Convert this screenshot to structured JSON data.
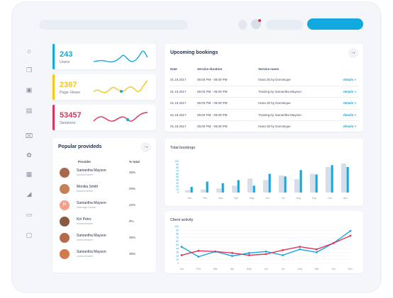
{
  "colors": {
    "blue": "#11a9e0",
    "yellow": "#f6c619",
    "red": "#e0325a",
    "lightbar": "#d7dde9",
    "purple": "#7d59c9"
  },
  "header": {
    "search_icon": "search-bar",
    "bell_icon": "bell-icon",
    "avatar_icon": "avatar-icon",
    "user_pill_icon": "user-pill",
    "primary_button_icon": "primary-action-button"
  },
  "sidebar": {
    "icons": [
      "bank-icon",
      "copy-icon",
      "image-icon",
      "files-icon",
      "trash-icon",
      "gift-icon",
      "grid-icon",
      "megaphone-icon",
      "monitor-icon",
      "chat-icon"
    ]
  },
  "stats": [
    {
      "value": "243",
      "label": "Users",
      "color": "#11a9e0"
    },
    {
      "value": "2367",
      "label": "Page Views",
      "color": "#f6c619"
    },
    {
      "value": "53457",
      "label": "Sessions",
      "color": "#e0325a"
    }
  ],
  "bookings": {
    "title": "Upcoming bookings",
    "headers": [
      "Date",
      "Service duration",
      "Service name"
    ],
    "rows": [
      {
        "date": "01.19.2017",
        "time": "05:00 PM - 06:00 PM",
        "service": "Hana 30 by Dominique",
        "action": "details >"
      },
      {
        "date": "01.19.2017",
        "time": "05:00 PM - 06:00 PM",
        "service": "Training by Samantha Mayson",
        "action": "details >"
      },
      {
        "date": "01.19.2017",
        "time": "05:00 PM - 06:00 PM",
        "service": "Hana 30 by Dominique",
        "action": "details >"
      },
      {
        "date": "01.19.2017",
        "time": "05:00 PM - 06:00 PM",
        "service": "Training by Samantha Mayson",
        "action": "details >"
      },
      {
        "date": "01.19.2017",
        "time": "05:00 PM - 06:00 PM",
        "service": "Hana 30 by Dominique",
        "action": "details >"
      }
    ]
  },
  "providers": {
    "title": "Popular provideds",
    "headers": [
      "Provider",
      "% total"
    ],
    "rows": [
      {
        "name": "Samantha Mayson",
        "sub": "london/trainer",
        "pct": "38%",
        "avatar": "#a8684a"
      },
      {
        "name": "Monika Smith",
        "sub": "london/trainer",
        "pct": "29%",
        "avatar": "#c5805a"
      },
      {
        "name": "Samantha Mayson",
        "sub": "Massage trainer",
        "pct": "22%",
        "avatar": "#f3a08a",
        "initial": "P"
      },
      {
        "name": "Kiri Petro",
        "sub": "london/trainer",
        "pct": "9%",
        "avatar": "#8a5a42"
      },
      {
        "name": "Samantha Mayson",
        "sub": "london/trainer",
        "pct": "38%",
        "avatar": "#b56a48"
      },
      {
        "name": "Samantha Mayson",
        "sub": "london/trainer",
        "pct": "38%",
        "avatar": "#d27a4c"
      }
    ]
  },
  "total_bookings": {
    "title": "Total bookings"
  },
  "client_activity": {
    "title": "Client activity"
  },
  "chart_data": [
    {
      "type": "bar",
      "title": "Total bookings",
      "categories": [
        "Jan",
        "Feb",
        "Mar",
        "Apr",
        "May",
        "Jun",
        "Jul",
        "Aug",
        "Sep",
        "Oct",
        "Nov"
      ],
      "ylim": [
        0,
        100
      ],
      "series": [
        {
          "values": [
            8,
            10,
            13,
            22,
            45,
            40,
            55,
            43,
            60,
            82,
            93
          ]
        },
        {
          "values": [
            18,
            35,
            30,
            40,
            22,
            60,
            52,
            72,
            58,
            88,
            82
          ]
        }
      ]
    },
    {
      "type": "line",
      "title": "Client activity",
      "categories": [
        "Jan",
        "Feb",
        "Mar",
        "Apr",
        "May",
        "Jun",
        "Jul",
        "Aug",
        "Sep",
        "Oct",
        "Nov"
      ],
      "ylim": [
        0,
        100
      ],
      "series": [
        {
          "values": [
            45,
            18,
            32,
            20,
            28,
            32,
            22,
            38,
            30,
            55,
            88
          ]
        },
        {
          "values": [
            22,
            34,
            32,
            28,
            22,
            25,
            36,
            45,
            38,
            55,
            75
          ]
        }
      ]
    }
  ]
}
